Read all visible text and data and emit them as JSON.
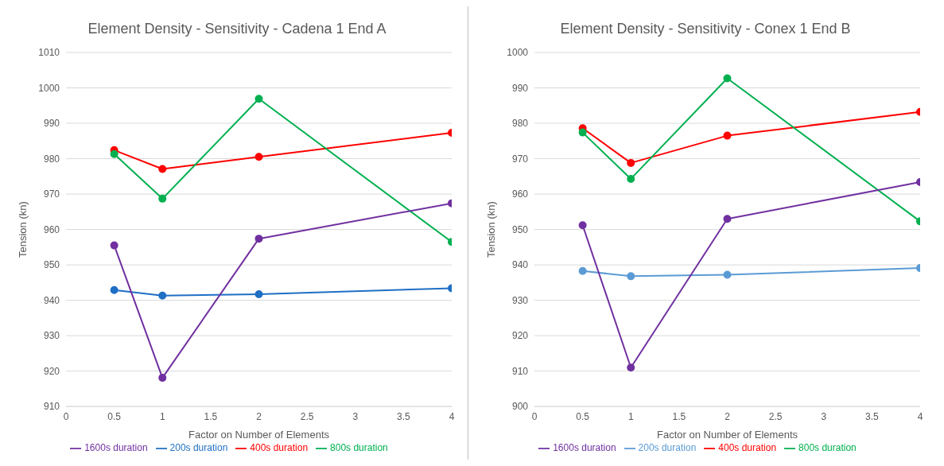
{
  "chart_data": [
    {
      "type": "line",
      "title": "Element Density - Sensitivity - Cadena 1 End A",
      "xlabel": "Factor on Number of Elements",
      "ylabel": "Tension (kn)",
      "x": [
        0.5,
        1,
        2,
        4
      ],
      "xlim": [
        0,
        4
      ],
      "xticks": [
        0,
        0.5,
        1,
        1.5,
        2,
        2.5,
        3,
        3.5,
        4
      ],
      "ylim": [
        910,
        1010
      ],
      "yticks": [
        910,
        920,
        930,
        940,
        950,
        960,
        970,
        980,
        990,
        1000,
        1010
      ],
      "grid": "y",
      "legend": "bottom",
      "marker": "circle",
      "line_style": "solid",
      "series": [
        {
          "name": "200s duration",
          "color": "#1f6fc5",
          "values": [
            942.9,
            941.3,
            941.7,
            943.4
          ]
        },
        {
          "name": "400s duration",
          "color": "#ff0000",
          "values": [
            982.4,
            977.1,
            980.5,
            987.3
          ]
        },
        {
          "name": "800s duration",
          "color": "#00b050",
          "values": [
            981.3,
            968.7,
            996.9,
            956.5
          ]
        },
        {
          "name": "1600s duration",
          "color": "#7030a0",
          "values": [
            955.5,
            918.1,
            957.4,
            967.4
          ]
        }
      ]
    },
    {
      "type": "line",
      "title": "Element Density - Sensitivity - Conex 1 End B",
      "xlabel": "Factor on Number of Elements",
      "ylabel": "Tension (kn)",
      "x": [
        0.5,
        1,
        2,
        4
      ],
      "xlim": [
        0,
        4
      ],
      "xticks": [
        0,
        0.5,
        1,
        1.5,
        2,
        2.5,
        3,
        3.5,
        4
      ],
      "ylim": [
        900,
        1000
      ],
      "yticks": [
        900,
        910,
        920,
        930,
        940,
        950,
        960,
        970,
        980,
        990,
        1000
      ],
      "grid": "y",
      "legend": "bottom",
      "marker": "circle",
      "line_style": "solid",
      "series": [
        {
          "name": "200s duration",
          "color": "#5b9bd5",
          "values": [
            938.3,
            936.8,
            937.2,
            939.1
          ]
        },
        {
          "name": "400s duration",
          "color": "#ff0000",
          "values": [
            978.6,
            968.8,
            976.5,
            983.2
          ]
        },
        {
          "name": "800s duration",
          "color": "#00b050",
          "values": [
            977.4,
            964.3,
            992.7,
            952.3
          ]
        },
        {
          "name": "1600s duration",
          "color": "#7030a0",
          "values": [
            951.2,
            911.0,
            953.0,
            963.4
          ]
        }
      ]
    }
  ]
}
